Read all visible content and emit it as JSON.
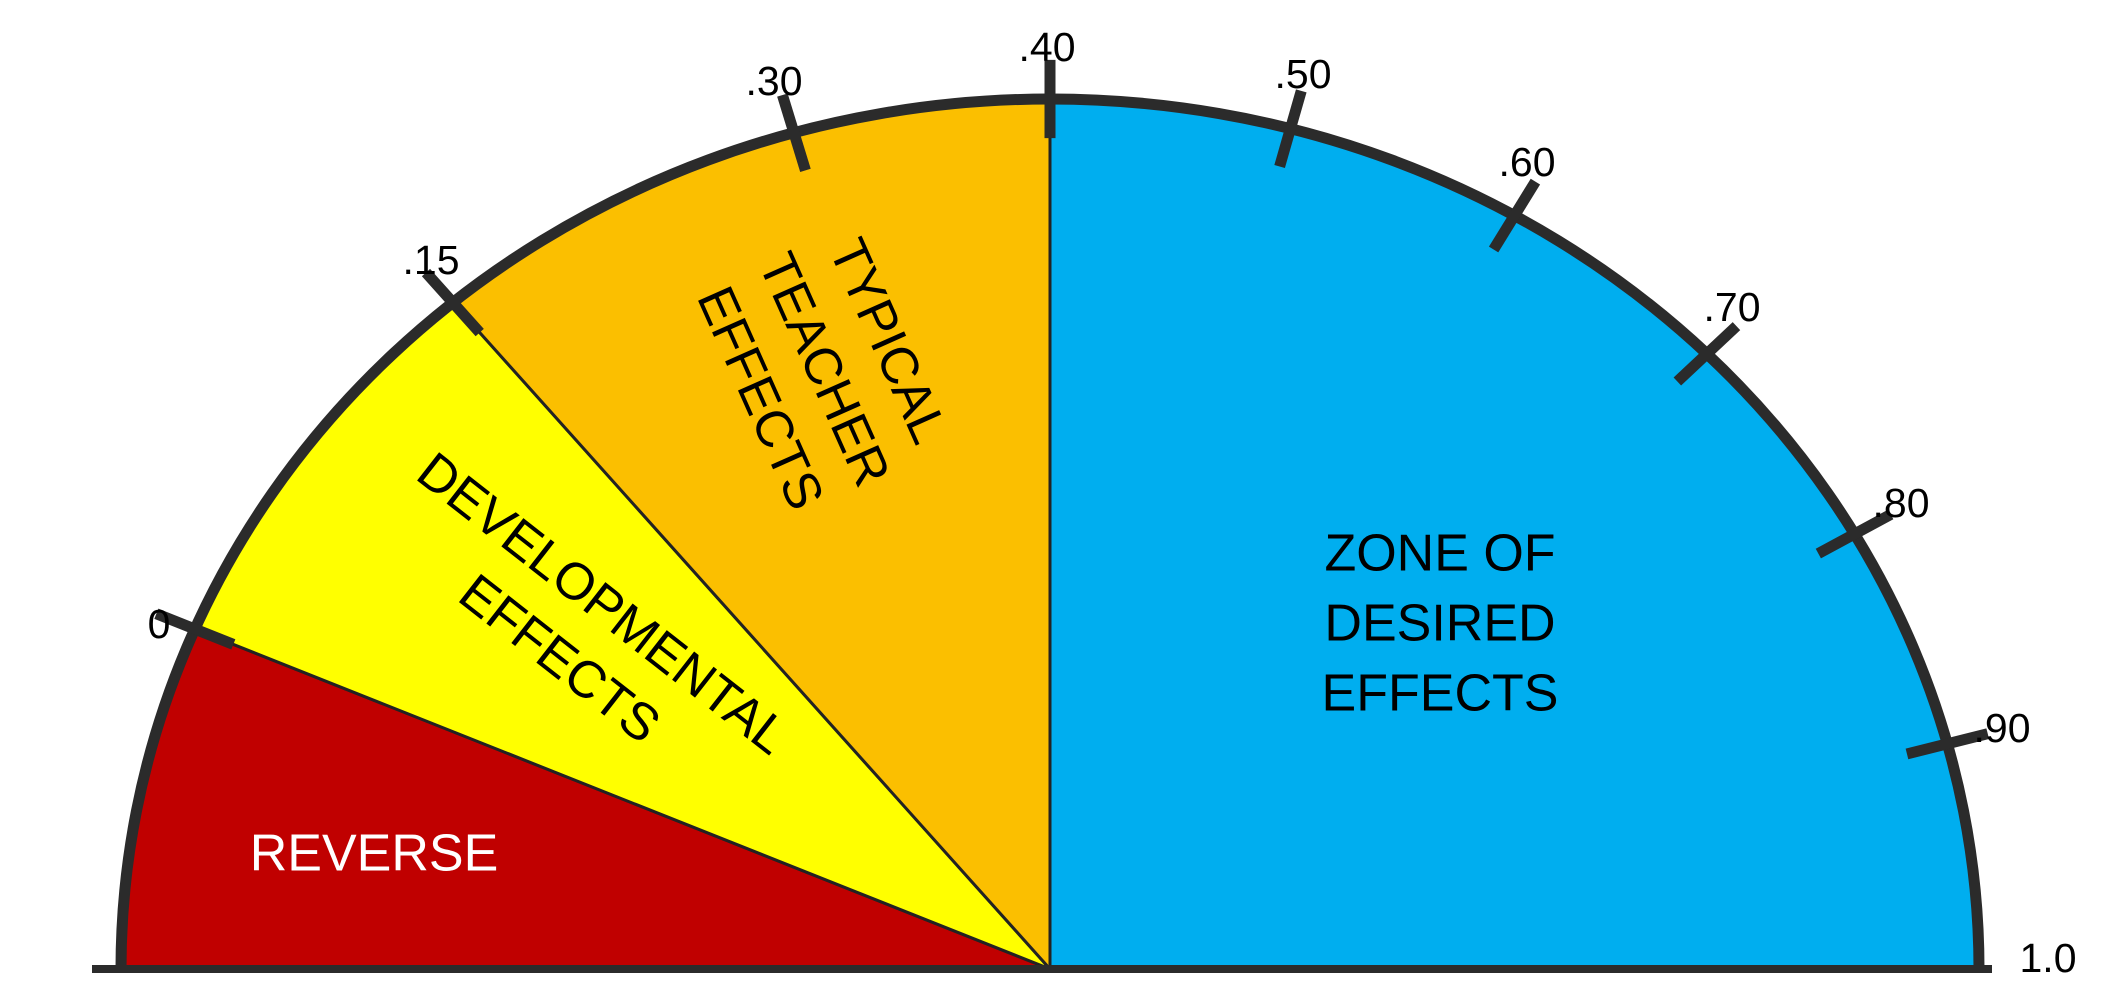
{
  "ticks": [
    "0",
    ".15",
    ".30",
    ".40",
    ".50",
    ".60",
    ".70",
    ".80",
    ".90",
    "1.0"
  ],
  "zones": [
    {
      "lines": [
        "REVERSE"
      ]
    },
    {
      "lines": [
        "DEVELOPMENTAL",
        "EFFECTS"
      ]
    },
    {
      "lines": [
        "TYPICAL",
        "TEACHER",
        "EFFECTS"
      ]
    },
    {
      "lines": [
        "ZONE OF",
        "DESIRED",
        "EFFECTS"
      ]
    }
  ]
}
